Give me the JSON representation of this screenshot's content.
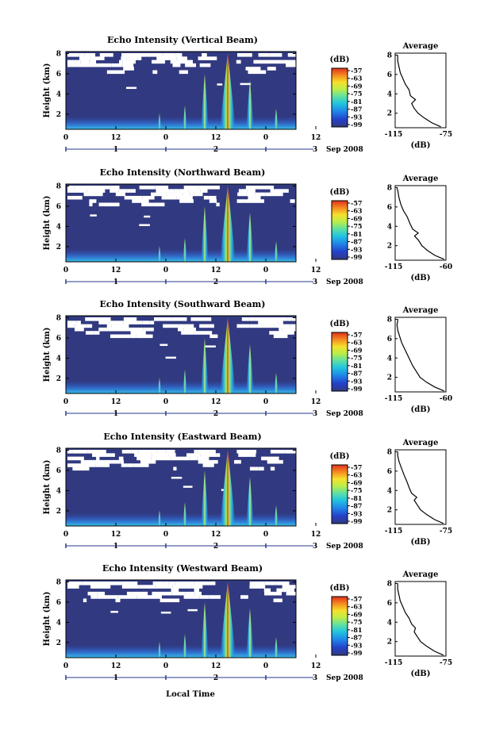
{
  "figure": {
    "date_label": "Sep 2008",
    "xlabel": "Local Time",
    "hour_ticks": [
      "0",
      "12",
      "0",
      "12",
      "0",
      "12"
    ],
    "day_ticks": [
      "1",
      "2",
      "3"
    ]
  },
  "chart_data": [
    {
      "type": "heatmap",
      "title": "Echo Intensity (Vertical Beam)",
      "ylabel": "Height (km)",
      "yticks": [
        2,
        4,
        6,
        8
      ],
      "colorbar_label": "(dB)",
      "colorbar_ticks": [
        "-57",
        "-63",
        "-69",
        "-75",
        "-81",
        "-87",
        "-93",
        "-99"
      ],
      "profile": {
        "title": "Average",
        "xlabel": "(dB)",
        "xticks": [
          "-115",
          "-75"
        ],
        "yticks": [
          2,
          4,
          6,
          8
        ],
        "xlim": [
          -115,
          -75
        ],
        "ylim": [
          0.5,
          8.2
        ],
        "points": [
          [
            -79,
            0.6
          ],
          [
            -86,
            1.0
          ],
          [
            -92,
            1.5
          ],
          [
            -97,
            2.0
          ],
          [
            -100,
            2.5
          ],
          [
            -102,
            3.0
          ],
          [
            -99,
            3.4
          ],
          [
            -103,
            3.8
          ],
          [
            -104,
            4.4
          ],
          [
            -107,
            5.0
          ],
          [
            -109,
            5.6
          ],
          [
            -111,
            6.2
          ],
          [
            -112,
            6.8
          ],
          [
            -113,
            7.4
          ],
          [
            -113,
            8.0
          ]
        ]
      }
    },
    {
      "type": "heatmap",
      "title": "Echo Intensity (Northward Beam)",
      "ylabel": "Height (km)",
      "yticks": [
        2,
        4,
        6,
        8
      ],
      "colorbar_label": "(dB)",
      "colorbar_ticks": [
        "-57",
        "-63",
        "-69",
        "-75",
        "-81",
        "-87",
        "-93",
        "-99"
      ],
      "profile": {
        "title": "Average",
        "xlabel": "(dB)",
        "xticks": [
          "-115",
          "-60"
        ],
        "yticks": [
          2,
          4,
          6,
          8
        ],
        "xlim": [
          -115,
          -60
        ],
        "ylim": [
          0.5,
          8.2
        ],
        "points": [
          [
            -62,
            0.6
          ],
          [
            -72,
            1.0
          ],
          [
            -80,
            1.5
          ],
          [
            -86,
            2.0
          ],
          [
            -90,
            2.6
          ],
          [
            -94,
            3.0
          ],
          [
            -90,
            3.3
          ],
          [
            -96,
            3.7
          ],
          [
            -99,
            4.3
          ],
          [
            -102,
            5.0
          ],
          [
            -106,
            5.6
          ],
          [
            -109,
            6.3
          ],
          [
            -111,
            7.0
          ],
          [
            -112,
            7.6
          ],
          [
            -113,
            8.0
          ]
        ]
      }
    },
    {
      "type": "heatmap",
      "title": "Echo Intensity (Southward Beam)",
      "ylabel": "Height (km)",
      "yticks": [
        2,
        4,
        6,
        8
      ],
      "colorbar_label": "(dB)",
      "colorbar_ticks": [
        "-57",
        "-63",
        "-69",
        "-75",
        "-81",
        "-87",
        "-93",
        "-99"
      ],
      "profile": {
        "title": "Average",
        "xlabel": "(dB)",
        "xticks": [
          "-115",
          "-60"
        ],
        "yticks": [
          2,
          4,
          6,
          8
        ],
        "xlim": [
          -115,
          -60
        ],
        "ylim": [
          0.5,
          8.2
        ],
        "points": [
          [
            -62,
            0.6
          ],
          [
            -72,
            1.0
          ],
          [
            -81,
            1.5
          ],
          [
            -88,
            2.0
          ],
          [
            -92,
            2.6
          ],
          [
            -96,
            3.2
          ],
          [
            -99,
            3.8
          ],
          [
            -102,
            4.4
          ],
          [
            -105,
            5.0
          ],
          [
            -108,
            5.6
          ],
          [
            -110,
            6.2
          ],
          [
            -112,
            6.8
          ],
          [
            -113,
            7.4
          ],
          [
            -112,
            8.0
          ]
        ]
      }
    },
    {
      "type": "heatmap",
      "title": "Echo Intensity (Eastward Beam)",
      "ylabel": "Height (km)",
      "yticks": [
        2,
        4,
        6,
        8
      ],
      "colorbar_label": "(dB)",
      "colorbar_ticks": [
        "-57",
        "-63",
        "-69",
        "-75",
        "-81",
        "-87",
        "-93",
        "-99"
      ],
      "profile": {
        "title": "Average",
        "xlabel": "(dB)",
        "xticks": [
          "-115",
          "-75"
        ],
        "yticks": [
          2,
          4,
          6,
          8
        ],
        "xlim": [
          -115,
          -75
        ],
        "ylim": [
          0.5,
          8.2
        ],
        "points": [
          [
            -77,
            0.6
          ],
          [
            -84,
            1.0
          ],
          [
            -90,
            1.5
          ],
          [
            -95,
            2.0
          ],
          [
            -98,
            2.6
          ],
          [
            -100,
            3.0
          ],
          [
            -98,
            3.3
          ],
          [
            -102,
            3.7
          ],
          [
            -104,
            4.3
          ],
          [
            -106,
            5.0
          ],
          [
            -108,
            5.6
          ],
          [
            -110,
            6.3
          ],
          [
            -112,
            7.0
          ],
          [
            -113,
            7.6
          ],
          [
            -113,
            8.0
          ]
        ]
      }
    },
    {
      "type": "heatmap",
      "title": "Echo Intensity (Westward Beam)",
      "ylabel": "Height (km)",
      "yticks": [
        2,
        4,
        6,
        8
      ],
      "colorbar_label": "(dB)",
      "colorbar_ticks": [
        "-57",
        "-63",
        "-69",
        "-75",
        "-81",
        "-87",
        "-93",
        "-99"
      ],
      "profile": {
        "title": "Average",
        "xlabel": "(dB)",
        "xticks": [
          "-115",
          "-75"
        ],
        "yticks": [
          2,
          4,
          6,
          8
        ],
        "xlim": [
          -115,
          -75
        ],
        "ylim": [
          0.5,
          8.2
        ],
        "points": [
          [
            -77,
            0.6
          ],
          [
            -84,
            1.0
          ],
          [
            -90,
            1.5
          ],
          [
            -95,
            2.0
          ],
          [
            -98,
            2.6
          ],
          [
            -100,
            3.0
          ],
          [
            -99,
            3.4
          ],
          [
            -102,
            3.8
          ],
          [
            -104,
            4.4
          ],
          [
            -107,
            5.0
          ],
          [
            -109,
            5.6
          ],
          [
            -111,
            6.2
          ],
          [
            -112,
            6.8
          ],
          [
            -113,
            7.4
          ],
          [
            -113,
            8.0
          ]
        ]
      }
    }
  ]
}
